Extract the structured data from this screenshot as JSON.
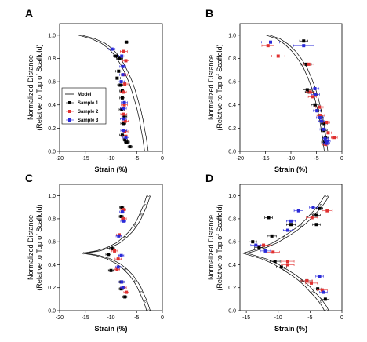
{
  "colors": {
    "sample1": "#000000",
    "sample2": "#e03030",
    "sample3": "#2a2ad8",
    "model": "#000000"
  },
  "chart_data": [
    {
      "panel": "A",
      "type": "scatter",
      "xlabel": "Strain (%)",
      "ylabel_line1": "Normalized Distance",
      "ylabel_line2": "(Relative to Top of Scaffold)",
      "xlim": [
        -20,
        0
      ],
      "ylim": [
        0,
        1.1
      ],
      "xticks": [
        "-20",
        "-15",
        "-10",
        "-5",
        "0"
      ],
      "yticks": [
        "0.0",
        "0.2",
        "0.4",
        "0.6",
        "0.8",
        "1.0"
      ],
      "legend": {
        "placement": "left",
        "entries": [
          "Model",
          "Sample 1",
          "Sample 2",
          "Sample 3"
        ]
      },
      "model_x": [
        -16.0,
        -13.5,
        -11.5,
        -10.0,
        -8.8,
        -7.8,
        -7.0,
        -6.2,
        -5.6,
        -5.0,
        -4.5,
        -4.1,
        -3.8,
        -3.5,
        -3.3,
        -3.1
      ],
      "model_y": [
        1.0,
        0.97,
        0.93,
        0.88,
        0.82,
        0.75,
        0.68,
        0.6,
        0.52,
        0.43,
        0.35,
        0.27,
        0.19,
        0.12,
        0.06,
        0.0
      ],
      "series": [
        {
          "name": "Sample 1",
          "points": [
            [
              -7.0,
              0.94
            ],
            [
              -9.0,
              0.82
            ],
            [
              -8.3,
              0.8
            ],
            [
              -8.5,
              0.69
            ],
            [
              -8.8,
              0.63
            ],
            [
              -8.2,
              0.57
            ],
            [
              -7.8,
              0.52
            ],
            [
              -7.8,
              0.46
            ],
            [
              -7.9,
              0.36
            ],
            [
              -7.4,
              0.3
            ],
            [
              -7.6,
              0.24
            ],
            [
              -7.8,
              0.14
            ],
            [
              -7.3,
              0.1
            ],
            [
              -6.9,
              0.08
            ],
            [
              -6.3,
              0.04
            ]
          ],
          "xerr": [
            0.3,
            0.5,
            0.6,
            0.6,
            0.6,
            0.5,
            0.5,
            0.5,
            0.5,
            0.5,
            0.5,
            0.5,
            0.5,
            0.5,
            0.4
          ]
        },
        {
          "name": "Sample 2",
          "points": [
            [
              -7.5,
              0.86
            ],
            [
              -7.1,
              0.78
            ],
            [
              -7.4,
              0.66
            ],
            [
              -7.3,
              0.58
            ],
            [
              -7.6,
              0.51
            ],
            [
              -7.4,
              0.4
            ],
            [
              -7.5,
              0.32
            ],
            [
              -7.2,
              0.26
            ],
            [
              -7.3,
              0.17
            ],
            [
              -7.1,
              0.13
            ]
          ],
          "xerr": [
            0.7,
            0.6,
            0.6,
            0.6,
            0.6,
            0.6,
            0.6,
            0.6,
            0.6,
            0.6
          ]
        },
        {
          "name": "Sample 3",
          "points": [
            [
              -9.8,
              0.88
            ],
            [
              -7.9,
              0.82
            ],
            [
              -7.7,
              0.73
            ],
            [
              -7.7,
              0.66
            ],
            [
              -8.0,
              0.6
            ],
            [
              -7.4,
              0.42
            ],
            [
              -7.6,
              0.37
            ],
            [
              -7.6,
              0.28
            ],
            [
              -7.5,
              0.18
            ],
            [
              -7.1,
              0.12
            ]
          ],
          "xerr": [
            0.6,
            0.6,
            0.6,
            0.6,
            0.6,
            0.6,
            0.6,
            0.6,
            0.6,
            0.6
          ]
        }
      ]
    },
    {
      "panel": "B",
      "type": "scatter",
      "xlabel": "Strain (%)",
      "ylabel_line1": "Normalized Distance",
      "ylabel_line2": "(Relative to Top of Scaffold)",
      "xlim": [
        -20,
        0
      ],
      "ylim": [
        0,
        1.1
      ],
      "xticks": [
        "-20",
        "-15",
        "-10",
        "-5",
        "0"
      ],
      "yticks": [
        "0.0",
        "0.2",
        "0.4",
        "0.6",
        "0.8",
        "1.0"
      ],
      "model_x": [
        -14.5,
        -12.5,
        -10.8,
        -9.4,
        -8.2,
        -7.2,
        -6.3,
        -5.6,
        -5.0,
        -4.5,
        -4.1,
        -3.8,
        -3.5,
        -3.3,
        -3.1
      ],
      "model_y": [
        1.0,
        0.97,
        0.92,
        0.86,
        0.79,
        0.72,
        0.63,
        0.55,
        0.46,
        0.37,
        0.29,
        0.21,
        0.13,
        0.06,
        0.0
      ],
      "series": [
        {
          "name": "Sample 1",
          "points": [
            [
              -7.5,
              0.95
            ],
            [
              -7.0,
              0.75
            ],
            [
              -6.8,
              0.53
            ],
            [
              -6.4,
              0.51
            ],
            [
              -5.3,
              0.4
            ],
            [
              -4.8,
              0.35
            ],
            [
              -3.5,
              0.24
            ],
            [
              -3.5,
              0.18
            ],
            [
              -3.2,
              0.12
            ],
            [
              -3.4,
              0.08
            ]
          ],
          "xerr": [
            0.8,
            1.0,
            0.8,
            0.8,
            0.7,
            0.7,
            0.6,
            0.6,
            0.6,
            0.6
          ]
        },
        {
          "name": "Sample 2",
          "points": [
            [
              -14.5,
              0.91
            ],
            [
              -12.5,
              0.82
            ],
            [
              -6.5,
              0.75
            ],
            [
              -6.2,
              0.51
            ],
            [
              -5.8,
              0.47
            ],
            [
              -4.4,
              0.38
            ],
            [
              -4.2,
              0.31
            ],
            [
              -3.0,
              0.25
            ],
            [
              -2.7,
              0.16
            ],
            [
              -1.5,
              0.12
            ],
            [
              -3.2,
              0.06
            ]
          ],
          "xerr": [
            1.2,
            1.3,
            1.0,
            0.8,
            0.8,
            0.7,
            0.7,
            0.6,
            0.6,
            0.6,
            0.6
          ]
        },
        {
          "name": "Sample 3",
          "points": [
            [
              -14.0,
              0.94
            ],
            [
              -7.5,
              0.91
            ],
            [
              -5.3,
              0.54
            ],
            [
              -5.2,
              0.49
            ],
            [
              -4.9,
              0.35
            ],
            [
              -4.3,
              0.29
            ],
            [
              -4.0,
              0.26
            ],
            [
              -3.7,
              0.19
            ],
            [
              -3.3,
              0.11
            ],
            [
              -2.9,
              0.09
            ],
            [
              -3.0,
              0.07
            ]
          ],
          "xerr": [
            1.8,
            2.0,
            0.8,
            0.8,
            0.7,
            0.7,
            0.6,
            0.6,
            0.6,
            0.6,
            0.6
          ]
        }
      ]
    },
    {
      "panel": "C",
      "type": "scatter",
      "xlabel": "Strain (%)",
      "ylabel_line1": "Normalized Distance",
      "ylabel_line2": "(Relative to Top of Scaffold)",
      "xlim": [
        -20,
        0
      ],
      "ylim": [
        0,
        1.1
      ],
      "xticks": [
        "-20",
        "-15",
        "-10",
        "-5",
        "0"
      ],
      "yticks": [
        "0.0",
        "0.2",
        "0.4",
        "0.6",
        "0.8",
        "1.0"
      ],
      "model_x": [
        -2.7,
        -3.0,
        -3.3,
        -3.7,
        -4.1,
        -4.6,
        -5.3,
        -6.1,
        -7.2,
        -8.6,
        -10.4,
        -12.6,
        -15.3,
        -12.6,
        -10.4,
        -8.6,
        -7.2,
        -6.1,
        -5.3,
        -4.6,
        -4.1,
        -3.7,
        -3.3,
        -3.0,
        -2.7
      ],
      "model_y": [
        1.0,
        0.96,
        0.92,
        0.88,
        0.84,
        0.79,
        0.74,
        0.69,
        0.64,
        0.59,
        0.55,
        0.52,
        0.5,
        0.48,
        0.45,
        0.41,
        0.36,
        0.31,
        0.26,
        0.21,
        0.16,
        0.12,
        0.08,
        0.04,
        0.0
      ],
      "series": [
        {
          "name": "Sample 1",
          "points": [
            [
              -7.9,
              0.9
            ],
            [
              -8.0,
              0.82
            ],
            [
              -9.8,
              0.54
            ],
            [
              -10.5,
              0.49
            ],
            [
              -10.0,
              0.35
            ],
            [
              -8.0,
              0.25
            ],
            [
              -8.0,
              0.19
            ],
            [
              -7.3,
              0.12
            ]
          ],
          "xerr": [
            0.4,
            0.4,
            0.5,
            0.5,
            0.5,
            0.4,
            0.4,
            0.4
          ]
        },
        {
          "name": "Sample 2",
          "points": [
            [
              -7.6,
              0.88
            ],
            [
              -7.5,
              0.8
            ],
            [
              -8.4,
              0.66
            ],
            [
              -9.3,
              0.52
            ],
            [
              -8.6,
              0.45
            ],
            [
              -8.8,
              0.36
            ],
            [
              -7.5,
              0.2
            ],
            [
              -7.0,
              0.16
            ]
          ],
          "xerr": [
            0.5,
            0.5,
            0.5,
            0.6,
            0.6,
            0.5,
            0.5,
            0.5
          ]
        },
        {
          "name": "Sample 3",
          "points": [
            [
              -7.8,
              0.86
            ],
            [
              -7.6,
              0.78
            ],
            [
              -8.5,
              0.65
            ],
            [
              -8.0,
              0.48
            ],
            [
              -8.6,
              0.38
            ],
            [
              -7.9,
              0.25
            ],
            [
              -7.7,
              0.2
            ]
          ],
          "xerr": [
            0.5,
            0.5,
            0.5,
            0.5,
            0.5,
            0.5,
            0.5
          ]
        }
      ]
    },
    {
      "panel": "D",
      "type": "scatter",
      "xlabel": "Strain (%)",
      "ylabel_line1": "Normalized Distance",
      "ylabel_line2": "(Relative to Top of Scaffold)",
      "xlim": [
        -16,
        0
      ],
      "ylim": [
        0,
        1.1
      ],
      "xticks": [
        "-15",
        "-10",
        "-5",
        "0"
      ],
      "yticks": [
        "0.0",
        "0.2",
        "0.4",
        "0.6",
        "0.8",
        "1.0"
      ],
      "model_x": [
        -2.4,
        -2.8,
        -3.3,
        -3.9,
        -4.6,
        -5.4,
        -6.4,
        -7.6,
        -9.0,
        -10.5,
        -12.2,
        -14.0,
        -15.2,
        -14.0,
        -12.2,
        -10.5,
        -9.0,
        -7.6,
        -6.4,
        -5.4,
        -4.6,
        -3.9,
        -3.3,
        -2.8,
        -2.4
      ],
      "model_y": [
        1.0,
        0.96,
        0.92,
        0.88,
        0.84,
        0.79,
        0.74,
        0.69,
        0.64,
        0.59,
        0.55,
        0.52,
        0.5,
        0.48,
        0.45,
        0.41,
        0.36,
        0.31,
        0.26,
        0.21,
        0.16,
        0.12,
        0.08,
        0.04,
        0.0
      ],
      "series": [
        {
          "name": "Sample 1",
          "points": [
            [
              -3.5,
              0.89
            ],
            [
              -4.0,
              0.83
            ],
            [
              -11.5,
              0.81
            ],
            [
              -8.0,
              0.75
            ],
            [
              -4.0,
              0.75
            ],
            [
              -11.0,
              0.65
            ],
            [
              -14.0,
              0.6
            ],
            [
              -13.0,
              0.55
            ],
            [
              -10.5,
              0.43
            ],
            [
              -9.5,
              0.38
            ],
            [
              -5.5,
              0.26
            ],
            [
              -3.8,
              0.19
            ],
            [
              -2.6,
              0.1
            ]
          ],
          "xerr": [
            0.5,
            0.6,
            0.6,
            0.7,
            0.6,
            0.7,
            0.6,
            0.7,
            0.8,
            0.8,
            0.7,
            0.6,
            0.6
          ]
        },
        {
          "name": "Sample 2",
          "points": [
            [
              -2.3,
              0.87
            ],
            [
              -4.7,
              0.81
            ],
            [
              -12.3,
              0.57
            ],
            [
              -10.8,
              0.51
            ],
            [
              -8.5,
              0.43
            ],
            [
              -8.5,
              0.4
            ],
            [
              -5.5,
              0.26
            ],
            [
              -4.8,
              0.24
            ],
            [
              -3.1,
              0.18
            ]
          ],
          "xerr": [
            0.8,
            0.9,
            1.2,
            1.0,
            1.0,
            1.0,
            0.9,
            0.9,
            0.8
          ]
        },
        {
          "name": "Sample 3",
          "points": [
            [
              -4.5,
              0.9
            ],
            [
              -8.0,
              0.78
            ],
            [
              -6.8,
              0.87
            ],
            [
              -8.5,
              0.7
            ],
            [
              -13.5,
              0.57
            ],
            [
              -12.0,
              0.52
            ],
            [
              -3.5,
              0.3
            ],
            [
              -2.9,
              0.16
            ]
          ],
          "xerr": [
            0.6,
            0.7,
            0.7,
            0.7,
            0.8,
            0.8,
            0.6,
            0.6
          ]
        }
      ]
    }
  ]
}
